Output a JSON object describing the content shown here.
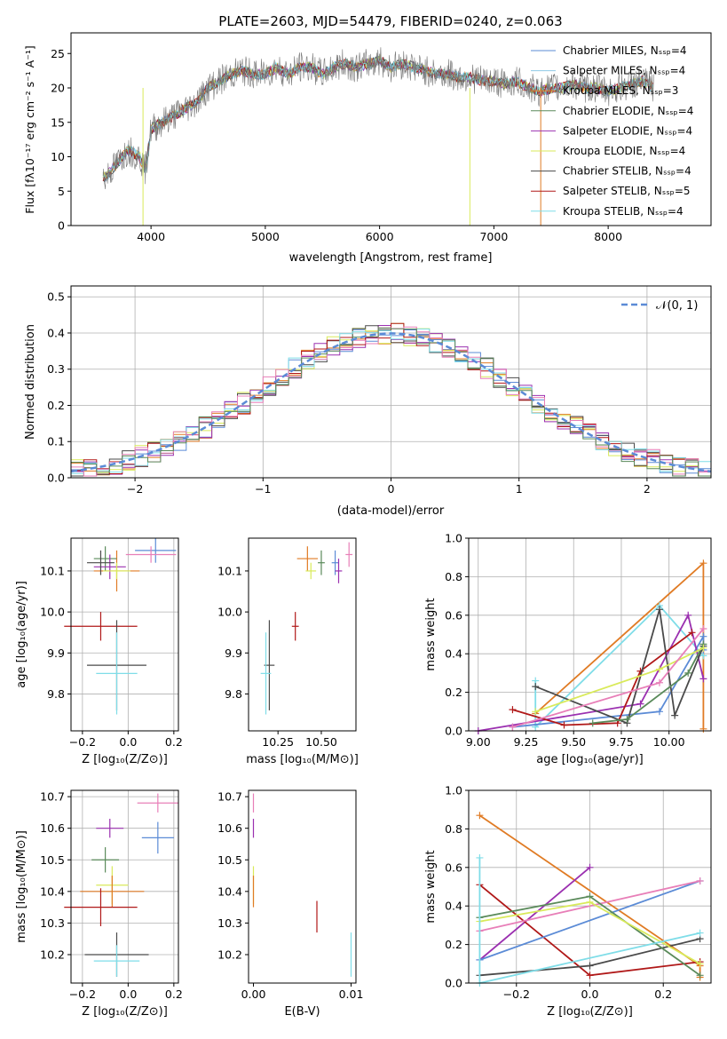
{
  "colors": {
    "chabrier_miles": "#5b8bd6",
    "salpeter_miles": "#8ecae6",
    "kroupa_miles": "#e07b24",
    "chabrier_elodie": "#5a8a5a",
    "salpeter_elodie": "#9b30b0",
    "kroupa_elodie": "#d9ea5a",
    "chabrier_stelib": "#4a4a4a",
    "salpeter_stelib": "#b01818",
    "kroupa_stelib": "#7fdde8",
    "pink": "#e87fb8",
    "grid": "#b0b0b0"
  },
  "spectrum_panel": {
    "title": "PLATE=2603, MJD=54479, FIBERID=0240, z=0.063",
    "ylabel": "Flux [fλ10⁻¹⁷ erg cm⁻² s⁻¹ A⁻¹]",
    "xlabel": "wavelength [Angstrom, rest frame]",
    "xticks": [
      "4000",
      "5000",
      "6000",
      "7000",
      "8000"
    ],
    "yticks": [
      "0",
      "5",
      "10",
      "15",
      "20",
      "25"
    ],
    "legend": [
      "Chabrier MILES, Nₛₛₚ=4",
      "Salpeter MILES, Nₛₛₚ=4",
      "Kroupa MILES, Nₛₛₚ=3",
      "Chabrier ELODIE, Nₛₛₚ=4",
      "Salpeter ELODIE, Nₛₛₚ=4",
      "Kroupa ELODIE, Nₛₛₚ=4",
      "Chabrier STELIB, Nₛₛₚ=4",
      "Salpeter STELIB, Nₛₛₚ=5",
      "Kroupa STELIB, Nₛₛₚ=4"
    ]
  },
  "hist_panel": {
    "ylabel": "Normed distribution",
    "xlabel": "(data-model)/error",
    "xticks": [
      "−2",
      "−1",
      "0",
      "1",
      "2"
    ],
    "yticks": [
      "0.0",
      "0.1",
      "0.2",
      "0.3",
      "0.4",
      "0.5"
    ],
    "legend": "𝒩(0, 1)"
  },
  "small_panels": {
    "age_z": {
      "ylabel": "age  [log₁₀(age/yr)]",
      "xlabel": "Z [log₁₀(Z/Z⊙)]",
      "xticks": [
        "−0.2",
        "0.0",
        "0.2"
      ],
      "yticks": [
        "9.8",
        "9.9",
        "10.0",
        "10.1"
      ]
    },
    "age_mass": {
      "xlabel": "mass [log₁₀(M/M⊙)]",
      "xticks": [
        "10.25",
        "10.50"
      ],
      "yticks": [
        "9.8",
        "9.9",
        "10.0",
        "10.1"
      ]
    },
    "mw_age": {
      "ylabel": "mass weight",
      "xlabel": "age  [log₁₀(age/yr)]",
      "xticks": [
        "9.00",
        "9.25",
        "9.50",
        "9.75",
        "10.00"
      ],
      "yticks": [
        "0.0",
        "0.2",
        "0.4",
        "0.6",
        "0.8",
        "1.0"
      ]
    },
    "mass_z": {
      "ylabel": "mass [log₁₀(M/M⊙)]",
      "xlabel": "Z [log₁₀(Z/Z⊙)]",
      "xticks": [
        "−0.2",
        "0.0",
        "0.2"
      ],
      "yticks": [
        "10.2",
        "10.3",
        "10.4",
        "10.5",
        "10.6",
        "10.7"
      ]
    },
    "mass_ebv": {
      "xlabel": "E(B-V)",
      "xticks": [
        "0.00",
        "0.01"
      ],
      "yticks": [
        "10.2",
        "10.3",
        "10.4",
        "10.5",
        "10.6",
        "10.7"
      ]
    },
    "mw_z": {
      "ylabel": "mass weight",
      "xlabel": "Z [log₁₀(Z/Z⊙)]",
      "xticks": [
        "−0.2",
        "0.0",
        "0.2"
      ],
      "yticks": [
        "0.0",
        "0.2",
        "0.4",
        "0.6",
        "0.8",
        "1.0"
      ]
    }
  },
  "chart_data": [
    {
      "type": "line",
      "title": "PLATE=2603, MJD=54479, FIBERID=0240, z=0.063",
      "xlabel": "wavelength [Angstrom, rest frame]",
      "ylabel": "Flux [fλ10⁻¹⁷ erg cm⁻² s⁻¹ A⁻¹]",
      "xlim": [
        3300,
        8900
      ],
      "ylim": [
        0,
        28
      ],
      "x": [
        3600,
        3700,
        3800,
        3900,
        3950,
        4000,
        4100,
        4200,
        4300,
        4400,
        4500,
        4600,
        4700,
        4800,
        4900,
        5000,
        5100,
        5200,
        5300,
        5400,
        5500,
        5600,
        5700,
        5800,
        5900,
        6000,
        6100,
        6200,
        6300,
        6400,
        6500,
        6600,
        6700,
        6800,
        6900,
        7000,
        7100,
        7200,
        7300,
        7400,
        7500,
        7600,
        7700,
        7800,
        7900,
        8000,
        8100,
        8200,
        8300,
        8400
      ],
      "y": [
        7,
        9,
        11,
        10,
        8,
        14,
        15,
        16,
        17,
        18,
        20,
        21,
        22,
        22.5,
        22,
        22,
        23,
        22,
        23,
        23,
        22,
        23,
        23.5,
        23,
        23.5,
        24,
        23,
        23.5,
        23,
        22.5,
        22,
        22,
        21.5,
        21.5,
        21,
        21,
        20.5,
        21,
        20,
        19.5,
        20,
        20,
        20.5,
        20,
        20,
        19.5,
        20,
        20.5,
        21,
        20
      ],
      "series": [
        {
          "name": "Chabrier MILES, Nₛₛₚ=4"
        },
        {
          "name": "Salpeter MILES, Nₛₛₚ=4"
        },
        {
          "name": "Kroupa MILES, Nₛₛₚ=3"
        },
        {
          "name": "Chabrier ELODIE, Nₛₛₚ=4"
        },
        {
          "name": "Salpeter ELODIE, Nₛₛₚ=4"
        },
        {
          "name": "Kroupa ELODIE, Nₛₛₚ=4"
        },
        {
          "name": "Chabrier STELIB, Nₛₛₚ=4"
        },
        {
          "name": "Salpeter STELIB, Nₛₛₚ=5"
        },
        {
          "name": "Kroupa STELIB, Nₛₛₚ=4"
        }
      ]
    },
    {
      "type": "bar",
      "xlabel": "(data-model)/error",
      "ylabel": "Normed distribution",
      "xlim": [
        -2.5,
        2.5
      ],
      "ylim": [
        0,
        0.53
      ],
      "bin_width": 0.1,
      "gaussian": {
        "name": "𝒩(0, 1)",
        "mu": 0,
        "sigma": 1
      },
      "series_bins": [
        [
          0.02,
          0.03,
          0.03,
          0.04,
          0.05,
          0.05,
          0.06,
          0.08,
          0.1,
          0.11,
          0.13,
          0.14,
          0.15,
          0.17,
          0.19,
          0.21,
          0.23,
          0.25,
          0.27,
          0.29,
          0.31,
          0.32,
          0.34,
          0.36,
          0.37,
          0.38,
          0.39,
          0.4,
          0.41,
          0.41,
          0.4,
          0.4,
          0.4,
          0.39,
          0.38,
          0.37,
          0.36,
          0.34,
          0.32,
          0.3,
          0.28,
          0.26,
          0.24,
          0.22,
          0.2,
          0.18,
          0.16,
          0.14,
          0.12,
          0.1
        ]
      ]
    },
    {
      "type": "scatter",
      "name": "age vs Z",
      "xlabel": "Z [log₁₀(Z/Z⊙)]",
      "ylabel": "age  [log₁₀(age/yr)]",
      "xlim": [
        -0.25,
        0.22
      ],
      "ylim": [
        9.71,
        10.18
      ],
      "points": [
        {
          "x": -0.05,
          "y": 10.1,
          "xerr": 0.1,
          "yerr": 0.05,
          "c": "kroupa_miles"
        },
        {
          "x": 0.12,
          "y": 10.15,
          "xerr": 0.09,
          "yerr": 0.03,
          "c": "chabrier_miles"
        },
        {
          "x": 0.1,
          "y": 10.14,
          "xerr": 0.11,
          "yerr": 0.02,
          "c": "pink"
        },
        {
          "x": -0.1,
          "y": 10.13,
          "xerr": 0.05,
          "yerr": 0.03,
          "c": "chabrier_elodie"
        },
        {
          "x": -0.08,
          "y": 10.11,
          "xerr": 0.07,
          "yerr": 0.03,
          "c": "salpeter_elodie"
        },
        {
          "x": -0.05,
          "y": 10.1,
          "xerr": 0.06,
          "yerr": 0.02,
          "c": "kroupa_elodie"
        },
        {
          "x": -0.12,
          "y": 10.12,
          "xerr": 0.06,
          "yerr": 0.03,
          "c": "chabrier_stelib"
        },
        {
          "x": -0.12,
          "y": 9.965,
          "xerr": 0.16,
          "yerr": 0.035,
          "c": "salpeter_stelib"
        },
        {
          "x": -0.05,
          "y": 9.87,
          "xerr": 0.13,
          "yerr": 0.11,
          "c": "chabrier_stelib"
        },
        {
          "x": -0.05,
          "y": 9.85,
          "xerr": 0.09,
          "yerr": 0.1,
          "c": "kroupa_stelib"
        }
      ]
    },
    {
      "type": "scatter",
      "name": "age vs mass",
      "xlabel": "mass [log₁₀(M/M⊙)]",
      "xlim": [
        10.08,
        10.7
      ],
      "ylim": [
        9.71,
        10.18
      ],
      "points": [
        {
          "x": 10.42,
          "y": 10.13,
          "xerr": 0.06,
          "yerr": 0.03,
          "c": "kroupa_miles"
        },
        {
          "x": 10.58,
          "y": 10.12,
          "xerr": 0.02,
          "yerr": 0.03,
          "c": "chabrier_miles"
        },
        {
          "x": 10.66,
          "y": 10.14,
          "xerr": 0.02,
          "yerr": 0.03,
          "c": "pink"
        },
        {
          "x": 10.5,
          "y": 10.12,
          "xerr": 0.02,
          "yerr": 0.03,
          "c": "chabrier_elodie"
        },
        {
          "x": 10.6,
          "y": 10.1,
          "xerr": 0.02,
          "yerr": 0.03,
          "c": "salpeter_elodie"
        },
        {
          "x": 10.44,
          "y": 10.1,
          "xerr": 0.03,
          "yerr": 0.02,
          "c": "kroupa_elodie"
        },
        {
          "x": 10.35,
          "y": 9.965,
          "xerr": 0.02,
          "yerr": 0.035,
          "c": "salpeter_stelib"
        },
        {
          "x": 10.2,
          "y": 9.87,
          "xerr": 0.03,
          "yerr": 0.11,
          "c": "chabrier_stelib"
        },
        {
          "x": 10.18,
          "y": 9.85,
          "xerr": 0.03,
          "yerr": 0.1,
          "c": "kroupa_stelib"
        }
      ]
    },
    {
      "type": "line",
      "name": "mass weight vs age",
      "xlabel": "age  [log₁₀(age/yr)]",
      "ylabel": "mass weight",
      "xlim": [
        8.95,
        10.22
      ],
      "ylim": [
        0,
        1
      ],
      "series": [
        {
          "c": "kroupa_miles",
          "x": [
            9.3,
            10.18,
            10.18
          ],
          "y": [
            0.09,
            0.87,
            0.01
          ]
        },
        {
          "c": "kroupa_stelib",
          "x": [
            9.3,
            9.3,
            9.95,
            10.18
          ],
          "y": [
            0.26,
            0.02,
            0.65,
            0.39
          ]
        },
        {
          "c": "chabrier_miles",
          "x": [
            9.18,
            9.95,
            10.18,
            10.18
          ],
          "y": [
            0.02,
            0.1,
            0.49,
            0.42
          ]
        },
        {
          "c": "salpeter_elodie",
          "x": [
            9.0,
            9.85,
            10.1,
            10.18
          ],
          "y": [
            0.0,
            0.14,
            0.6,
            0.27
          ]
        },
        {
          "c": "salpeter_stelib",
          "x": [
            9.18,
            9.45,
            9.73,
            9.85,
            10.12
          ],
          "y": [
            0.11,
            0.03,
            0.04,
            0.31,
            0.51
          ]
        },
        {
          "c": "chabrier_stelib",
          "x": [
            9.3,
            9.78,
            9.95,
            10.03,
            10.18
          ],
          "y": [
            0.23,
            0.04,
            0.63,
            0.08,
            0.44
          ]
        },
        {
          "c": "chabrier_elodie",
          "x": [
            9.6,
            9.78,
            10.1,
            10.18
          ],
          "y": [
            0.04,
            0.06,
            0.3,
            0.45
          ]
        },
        {
          "c": "kroupa_elodie",
          "x": [
            9.3,
            9.95,
            10.18
          ],
          "y": [
            0.1,
            0.32,
            0.43
          ]
        },
        {
          "c": "pink",
          "x": [
            9.18,
            9.95,
            10.18
          ],
          "y": [
            0.02,
            0.25,
            0.53
          ]
        }
      ]
    },
    {
      "type": "scatter",
      "name": "mass vs Z",
      "xlabel": "Z [log₁₀(Z/Z⊙)]",
      "ylabel": "mass [log₁₀(M/M⊙)]",
      "xlim": [
        -0.25,
        0.22
      ],
      "ylim": [
        10.11,
        10.72
      ],
      "points": [
        {
          "x": 0.13,
          "y": 10.68,
          "xerr": 0.09,
          "yerr": 0.03,
          "c": "pink"
        },
        {
          "x": -0.08,
          "y": 10.6,
          "xerr": 0.06,
          "yerr": 0.03,
          "c": "salpeter_elodie"
        },
        {
          "x": 0.13,
          "y": 10.57,
          "xerr": 0.07,
          "yerr": 0.05,
          "c": "chabrier_miles"
        },
        {
          "x": -0.1,
          "y": 10.5,
          "xerr": 0.06,
          "yerr": 0.04,
          "c": "chabrier_elodie"
        },
        {
          "x": -0.07,
          "y": 10.42,
          "xerr": 0.07,
          "yerr": 0.06,
          "c": "kroupa_elodie"
        },
        {
          "x": -0.07,
          "y": 10.4,
          "xerr": 0.14,
          "yerr": 0.05,
          "c": "kroupa_miles"
        },
        {
          "x": -0.12,
          "y": 10.35,
          "xerr": 0.16,
          "yerr": 0.06,
          "c": "salpeter_stelib"
        },
        {
          "x": -0.05,
          "y": 10.2,
          "xerr": 0.14,
          "yerr": 0.07,
          "c": "chabrier_stelib"
        },
        {
          "x": -0.05,
          "y": 10.18,
          "xerr": 0.1,
          "yerr": 0.05,
          "c": "kroupa_stelib"
        }
      ]
    },
    {
      "type": "scatter",
      "name": "mass vs E(B-V)",
      "xlabel": "E(B-V)",
      "xlim": [
        -0.0005,
        0.0105
      ],
      "ylim": [
        10.11,
        10.72
      ],
      "points": [
        {
          "x": 0.0,
          "y": 10.68,
          "xerr": 0,
          "yerr": 0.03,
          "c": "pink"
        },
        {
          "x": 0.0,
          "y": 10.6,
          "xerr": 0,
          "yerr": 0.03,
          "c": "salpeter_elodie"
        },
        {
          "x": 0.0,
          "y": 10.42,
          "xerr": 0,
          "yerr": 0.06,
          "c": "kroupa_elodie"
        },
        {
          "x": 0.0,
          "y": 10.4,
          "xerr": 0,
          "yerr": 0.05,
          "c": "kroupa_miles"
        },
        {
          "x": 0.0065,
          "y": 10.32,
          "xerr": 0,
          "yerr": 0.05,
          "c": "salpeter_stelib"
        },
        {
          "x": 0.01,
          "y": 10.2,
          "xerr": 0,
          "yerr": 0.07,
          "c": "kroupa_stelib"
        }
      ]
    },
    {
      "type": "line",
      "name": "mass weight vs Z",
      "xlabel": "Z [log₁₀(Z/Z⊙)]",
      "ylabel": "mass weight",
      "xlim": [
        -0.33,
        0.33
      ],
      "ylim": [
        0,
        1
      ],
      "series": [
        {
          "c": "kroupa_miles",
          "x": [
            -0.3,
            0.3,
            0.3
          ],
          "y": [
            0.87,
            0.09,
            0.03
          ]
        },
        {
          "c": "salpeter_elodie",
          "x": [
            -0.3,
            0.0
          ],
          "y": [
            0.12,
            0.6
          ]
        },
        {
          "c": "salpeter_stelib",
          "x": [
            -0.3,
            0.0,
            0.3
          ],
          "y": [
            0.51,
            0.04,
            0.11
          ]
        },
        {
          "c": "chabrier_miles",
          "x": [
            -0.3,
            0.3
          ],
          "y": [
            0.12,
            0.53
          ]
        },
        {
          "c": "pink",
          "x": [
            -0.3,
            0.3
          ],
          "y": [
            0.27,
            0.53
          ]
        },
        {
          "c": "chabrier_stelib",
          "x": [
            -0.3,
            0.0,
            0.3
          ],
          "y": [
            0.04,
            0.09,
            0.23
          ]
        },
        {
          "c": "chabrier_elodie",
          "x": [
            -0.3,
            0.0,
            0.3
          ],
          "y": [
            0.34,
            0.45,
            0.04
          ]
        },
        {
          "c": "kroupa_elodie",
          "x": [
            -0.3,
            0.0,
            0.3
          ],
          "y": [
            0.32,
            0.42,
            0.1
          ]
        },
        {
          "c": "kroupa_stelib",
          "x": [
            -0.3,
            -0.3,
            0.3
          ],
          "y": [
            0.65,
            0.0,
            0.26
          ]
        }
      ]
    }
  ]
}
